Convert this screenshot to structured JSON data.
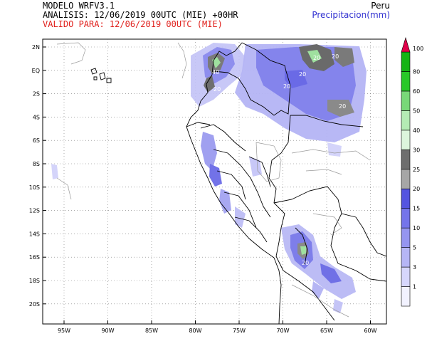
{
  "header": {
    "model": "MODELO WRFV3.1",
    "analysis": "ANALISIS: 12/06/2019 00UTC (MIE) +00HR",
    "valid": "VALIDO PARA: 12/06/2019 00UTC (MIE)",
    "region": "Peru",
    "variable": "Precipitacion(mm)"
  },
  "map": {
    "lat_labels": [
      "2N",
      "EQ",
      "2S",
      "4S",
      "6S",
      "8S",
      "10S",
      "12S",
      "14S",
      "16S",
      "18S",
      "20S"
    ],
    "lon_labels": [
      "95W",
      "90W",
      "85W",
      "80W",
      "75W",
      "70W",
      "65W",
      "60W"
    ],
    "contour_labels": [
      "40",
      "20",
      "20",
      "20",
      "20",
      "20",
      "20",
      "20"
    ]
  },
  "colorbar": {
    "levels": [
      "1",
      "3",
      "5",
      "10",
      "15",
      "20",
      "25",
      "30",
      "40",
      "50",
      "60",
      "80",
      "100"
    ],
    "colors": [
      "#f2f2ff",
      "#d6d6fc",
      "#b6b6f5",
      "#9595f0",
      "#7474ea",
      "#5454e0",
      "#a6a6a6",
      "#6e6e6e",
      "#dcf5dc",
      "#b4ebb4",
      "#78d878",
      "#28c828",
      "#14b414",
      "#e0004a"
    ]
  }
}
